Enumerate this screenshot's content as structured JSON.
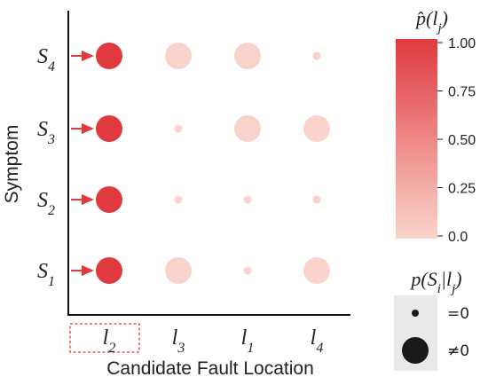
{
  "chart_data": {
    "type": "scatter",
    "xlabel": "Candidate Fault Location",
    "ylabel": "Symptom",
    "x_categories": [
      "l2",
      "l3",
      "l1",
      "l4"
    ],
    "y_categories": [
      "S1",
      "S2",
      "S3",
      "S4"
    ],
    "highlighted_x": "l2",
    "points": [
      {
        "x": "l2",
        "y": "S4",
        "p": 1.0,
        "nonzero": true
      },
      {
        "x": "l3",
        "y": "S4",
        "p": 0.0,
        "nonzero": true
      },
      {
        "x": "l1",
        "y": "S4",
        "p": 0.0,
        "nonzero": true
      },
      {
        "x": "l4",
        "y": "S4",
        "p": 0.0,
        "nonzero": false
      },
      {
        "x": "l2",
        "y": "S3",
        "p": 1.0,
        "nonzero": true
      },
      {
        "x": "l3",
        "y": "S3",
        "p": 0.0,
        "nonzero": false
      },
      {
        "x": "l1",
        "y": "S3",
        "p": 0.0,
        "nonzero": true
      },
      {
        "x": "l4",
        "y": "S3",
        "p": 0.0,
        "nonzero": true
      },
      {
        "x": "l2",
        "y": "S2",
        "p": 1.0,
        "nonzero": true
      },
      {
        "x": "l3",
        "y": "S2",
        "p": 0.0,
        "nonzero": false
      },
      {
        "x": "l1",
        "y": "S2",
        "p": 0.0,
        "nonzero": false
      },
      {
        "x": "l4",
        "y": "S2",
        "p": 0.0,
        "nonzero": false
      },
      {
        "x": "l2",
        "y": "S1",
        "p": 1.0,
        "nonzero": true
      },
      {
        "x": "l3",
        "y": "S1",
        "p": 0.0,
        "nonzero": true
      },
      {
        "x": "l1",
        "y": "S1",
        "p": 0.0,
        "nonzero": false
      },
      {
        "x": "l4",
        "y": "S1",
        "p": 0.0,
        "nonzero": true
      }
    ],
    "colorbar": {
      "title": "p̂(lj)",
      "ticks": [
        "1.00",
        "0.75",
        "0.50",
        "0.25",
        "0.0"
      ],
      "range": [
        0,
        1
      ],
      "color_low": "#fad4cc",
      "color_high": "#e03a3e"
    },
    "size_legend": {
      "title": "p(Si|lj)",
      "entries": [
        {
          "label": "=0",
          "nonzero": false
        },
        {
          "label": "≠0",
          "nonzero": true
        }
      ]
    },
    "arrow_color": "#e03a3e"
  }
}
